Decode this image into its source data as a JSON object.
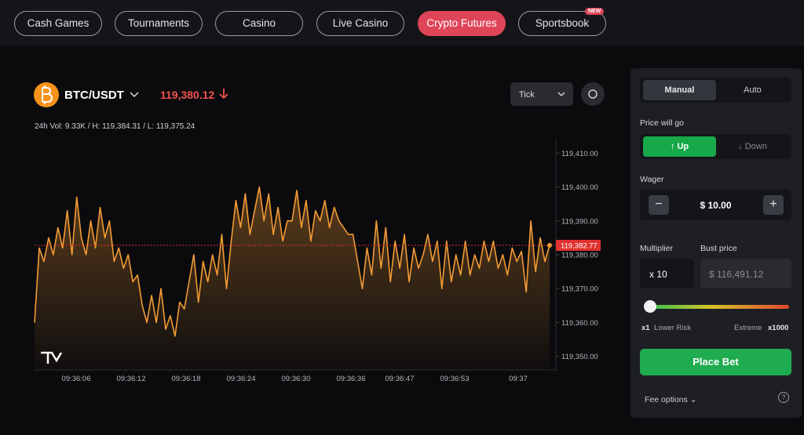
{
  "nav": {
    "tabs": [
      "Cash Games",
      "Tournaments",
      "Casino",
      "Live Casino",
      "Crypto Futures",
      "Sportsbook"
    ],
    "active": 4,
    "badge": "NEW"
  },
  "ticker": {
    "pair": "BTC/USDT",
    "price": "119,380.12",
    "stats": "24h Vol: 9.33K / H: 119,384.31 / L: 119,375.24"
  },
  "resolution": "Tick",
  "chart_data": {
    "type": "line",
    "color": "#f39b35",
    "x_labels": [
      "09:36:06",
      "09:36:12",
      "09:36:18",
      "09:36:24",
      "09:36:30",
      "09:36:36",
      "09:36:47",
      "09:36:53",
      "09:37"
    ],
    "values": [
      119360,
      119382,
      119378,
      119385,
      119380,
      119388,
      119382,
      119393,
      119380,
      119397,
      119385,
      119380,
      119390,
      119382,
      119394,
      119385,
      119390,
      119378,
      119382,
      119376,
      119380,
      119372,
      119374,
      119365,
      119360,
      119368,
      119360,
      119370,
      119358,
      119362,
      119356,
      119366,
      119364,
      119372,
      119380,
      119366,
      119378,
      119372,
      119380,
      119374,
      119386,
      119370,
      119384,
      119396,
      119388,
      119398,
      119386,
      119393,
      119400,
      119390,
      119398,
      119386,
      119394,
      119384,
      119390,
      119390,
      119399,
      119388,
      119396,
      119384,
      119393,
      119390,
      119396,
      119388,
      119394,
      119390,
      119388,
      119386,
      119386,
      119378,
      119370,
      119382,
      119374,
      119390,
      119376,
      119388,
      119372,
      119384,
      119376,
      119386,
      119372,
      119382,
      119376,
      119380,
      119386,
      119378,
      119384,
      119370,
      119384,
      119372,
      119380,
      119374,
      119384,
      119374,
      119380,
      119376,
      119384,
      119378,
      119384,
      119376,
      119380,
      119374,
      119382,
      119378,
      119381,
      119369,
      119390,
      119375,
      119385,
      119378,
      119382.77
    ],
    "ylim": [
      119346,
      119414
    ],
    "yticks": [
      {
        "value": 119410,
        "label": "119,410.00"
      },
      {
        "value": 119400,
        "label": "119,400.00"
      },
      {
        "value": 119390,
        "label": "119,390.00"
      },
      {
        "value": 119380,
        "label": "119,380.00"
      },
      {
        "value": 119370,
        "label": "119,370.00"
      },
      {
        "value": 119360,
        "label": "119,360.00"
      },
      {
        "value": 119350,
        "label": "119,350.00"
      }
    ],
    "current": {
      "value": 119382.77,
      "label": "119,382.77",
      "color": "#e0322f"
    }
  },
  "bet_panel": {
    "modes": [
      "Manual",
      "Auto"
    ],
    "direction_label": "Price will go",
    "directions": [
      "Up",
      "Down"
    ],
    "wager_label": "Wager",
    "wager": "$ 10.00",
    "multiplier_label": "Multiplier",
    "multiplier": "x 10",
    "bust_label": "Bust price",
    "bust": "$ 116,491.12",
    "risk": {
      "min": "x1",
      "min_label": "Lower Risk",
      "max_label": "Extreme",
      "max": "x1000"
    },
    "place_bet": "Place Bet",
    "fee_options": "Fee options"
  }
}
